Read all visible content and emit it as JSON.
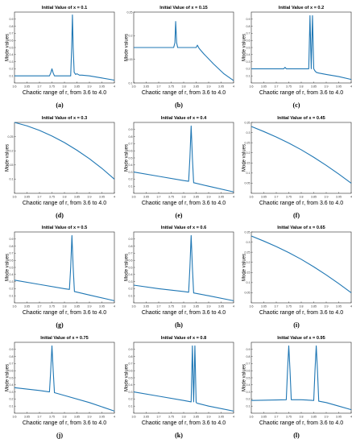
{
  "figure": {
    "line_color": "#1f77b4",
    "ylabel": "Mode values",
    "xlabel": "Chaotic range of r, from 3.6 to 4.0"
  },
  "chart_data": [
    {
      "type": "line",
      "caption": "(a)",
      "title": "Initial Value of x = 0.1",
      "xlim": [
        3.6,
        4.0
      ],
      "ylim": [
        0,
        1
      ],
      "xticks": [
        "3.6",
        "3.65",
        "3.7",
        "3.75",
        "3.8",
        "3.85",
        "3.9",
        "3.95",
        "4"
      ],
      "yticks": [
        "0.1",
        "0.2",
        "0.3",
        "0.4",
        "0.5",
        "0.6",
        "0.7",
        "0.8",
        "0.9"
      ],
      "series": [
        {
          "x": [
            3.6,
            3.74,
            3.745,
            3.75,
            3.755,
            3.76,
            3.825,
            3.829,
            3.832,
            3.835,
            3.839,
            3.845,
            3.85,
            3.855,
            3.86,
            3.87,
            3.9,
            3.95,
            4.0
          ],
          "y": [
            0.1,
            0.1,
            0.14,
            0.2,
            0.14,
            0.1,
            0.1,
            0.5,
            0.96,
            0.5,
            0.15,
            0.12,
            0.13,
            0.12,
            0.11,
            0.11,
            0.1,
            0.07,
            0.04
          ]
        }
      ]
    },
    {
      "type": "line",
      "caption": "(b)",
      "title": "Initial Value of x = 0.15",
      "xlim": [
        3.6,
        4.0
      ],
      "ylim": [
        0.1,
        0.25
      ],
      "xticks": [
        "3.6",
        "3.65",
        "3.7",
        "3.75",
        "3.8",
        "3.85",
        "3.9",
        "3.95",
        "4"
      ],
      "yticks": [
        "0.1",
        "0.15",
        "0.2",
        "0.25"
      ],
      "series": [
        {
          "x": [
            3.6,
            3.76,
            3.765,
            3.768,
            3.772,
            3.776,
            3.85,
            3.855,
            3.862,
            3.88,
            3.92,
            3.96,
            4.0
          ],
          "y": [
            0.175,
            0.175,
            0.185,
            0.23,
            0.185,
            0.175,
            0.175,
            0.18,
            0.173,
            0.162,
            0.14,
            0.12,
            0.105
          ]
        }
      ]
    },
    {
      "type": "line",
      "caption": "(c)",
      "title": "Initial Value of x = 0.2",
      "xlim": [
        3.6,
        4.0
      ],
      "ylim": [
        0,
        1
      ],
      "xticks": [
        "3.6",
        "3.65",
        "3.7",
        "3.75",
        "3.8",
        "3.85",
        "3.9",
        "3.95",
        "4"
      ],
      "yticks": [
        "0.1",
        "0.2",
        "0.3",
        "0.4",
        "0.5",
        "0.6",
        "0.7",
        "0.8",
        "0.9"
      ],
      "series": [
        {
          "x": [
            3.6,
            3.73,
            3.735,
            3.74,
            3.83,
            3.835,
            3.84,
            3.845,
            3.85,
            3.855,
            3.86,
            3.87,
            3.9,
            3.95,
            4.0
          ],
          "y": [
            0.2,
            0.2,
            0.22,
            0.2,
            0.2,
            0.95,
            0.2,
            0.95,
            0.2,
            0.17,
            0.15,
            0.14,
            0.12,
            0.09,
            0.05
          ]
        }
      ]
    },
    {
      "type": "line",
      "caption": "(d)",
      "title": "Initial Value of x = 0.3",
      "xlim": [
        3.6,
        4.0
      ],
      "ylim": [
        0.05,
        0.3
      ],
      "xticks": [
        "3.6",
        "3.65",
        "3.7",
        "3.75",
        "3.8",
        "3.85",
        "3.9",
        "3.95",
        "4"
      ],
      "yticks": [
        "0.1",
        "0.15",
        "0.2",
        "0.25"
      ],
      "series": [
        {
          "x": [
            3.6,
            3.65,
            3.7,
            3.75,
            3.8,
            3.85,
            3.9,
            3.95,
            4.0
          ],
          "y": [
            0.3,
            0.288,
            0.272,
            0.252,
            0.229,
            0.202,
            0.172,
            0.138,
            0.1
          ]
        }
      ]
    },
    {
      "type": "line",
      "caption": "(e)",
      "title": "Initial Value of x = 0.4",
      "xlim": [
        3.6,
        4.0
      ],
      "ylim": [
        0,
        1
      ],
      "xticks": [
        "3.6",
        "3.65",
        "3.7",
        "3.75",
        "3.8",
        "3.85",
        "3.9",
        "3.95",
        "4"
      ],
      "yticks": [
        "0.1",
        "0.2",
        "0.3",
        "0.4",
        "0.5",
        "0.6",
        "0.7",
        "0.8",
        "0.9"
      ],
      "series": [
        {
          "x": [
            3.6,
            3.7,
            3.8,
            3.82,
            3.825,
            3.83,
            3.835,
            3.84,
            3.9,
            4.0
          ],
          "y": [
            0.3,
            0.24,
            0.18,
            0.17,
            0.5,
            0.95,
            0.5,
            0.15,
            0.1,
            0.02
          ]
        }
      ]
    },
    {
      "type": "line",
      "caption": "(f)",
      "title": "Initial Value of x = 0.45",
      "xlim": [
        3.6,
        4.0
      ],
      "ylim": [
        0,
        0.35
      ],
      "xticks": [
        "3.6",
        "3.65",
        "3.7",
        "3.75",
        "3.8",
        "3.85",
        "3.9",
        "3.95",
        "4"
      ],
      "yticks": [
        "0.05",
        "0.1",
        "0.15",
        "0.2",
        "0.25",
        "0.3",
        "0.35"
      ],
      "series": [
        {
          "x": [
            3.6,
            3.65,
            3.7,
            3.75,
            3.8,
            3.85,
            3.9,
            3.95,
            4.0
          ],
          "y": [
            0.33,
            0.305,
            0.278,
            0.248,
            0.215,
            0.178,
            0.138,
            0.095,
            0.05
          ]
        }
      ]
    },
    {
      "type": "line",
      "caption": "(g)",
      "title": "Initial Value of x = 0.5",
      "xlim": [
        3.6,
        4.0
      ],
      "ylim": [
        0,
        1
      ],
      "xticks": [
        "3.6",
        "3.65",
        "3.7",
        "3.75",
        "3.8",
        "3.85",
        "3.9",
        "3.95",
        "4"
      ],
      "yticks": [
        "0.1",
        "0.2",
        "0.3",
        "0.4",
        "0.5",
        "0.6",
        "0.7",
        "0.8",
        "0.9"
      ],
      "series": [
        {
          "x": [
            3.6,
            3.7,
            3.8,
            3.82,
            3.825,
            3.83,
            3.835,
            3.84,
            3.9,
            4.0
          ],
          "y": [
            0.32,
            0.26,
            0.2,
            0.19,
            0.5,
            0.95,
            0.5,
            0.16,
            0.11,
            0.03
          ]
        }
      ]
    },
    {
      "type": "line",
      "caption": "(h)",
      "title": "Initial Value of x = 0.6",
      "xlim": [
        3.6,
        4.0
      ],
      "ylim": [
        0,
        1
      ],
      "xticks": [
        "3.6",
        "3.65",
        "3.7",
        "3.75",
        "3.8",
        "3.85",
        "3.9",
        "3.95",
        "4"
      ],
      "yticks": [
        "0.1",
        "0.2",
        "0.3",
        "0.4",
        "0.5",
        "0.6",
        "0.7",
        "0.8",
        "0.9"
      ],
      "series": [
        {
          "x": [
            3.6,
            3.7,
            3.8,
            3.82,
            3.825,
            3.83,
            3.835,
            3.84,
            3.9,
            4.0
          ],
          "y": [
            0.25,
            0.2,
            0.16,
            0.15,
            0.5,
            0.95,
            0.5,
            0.14,
            0.1,
            0.03
          ]
        }
      ]
    },
    {
      "type": "line",
      "caption": "(i)",
      "title": "Initial Value of x = 0.65",
      "xlim": [
        3.6,
        4.0
      ],
      "ylim": [
        0,
        0.35
      ],
      "xticks": [
        "3.6",
        "3.65",
        "3.7",
        "3.75",
        "3.8",
        "3.85",
        "3.9",
        "3.95",
        "4"
      ],
      "yticks": [
        "0.05",
        "0.1",
        "0.15",
        "0.2",
        "0.25",
        "0.3",
        "0.35"
      ],
      "series": [
        {
          "x": [
            3.6,
            3.65,
            3.7,
            3.75,
            3.8,
            3.85,
            3.9,
            3.95,
            4.0
          ],
          "y": [
            0.33,
            0.305,
            0.278,
            0.248,
            0.215,
            0.178,
            0.138,
            0.095,
            0.05
          ]
        }
      ]
    },
    {
      "type": "line",
      "caption": "(j)",
      "title": "Initial Value of x = 0.75",
      "xlim": [
        3.6,
        4.0
      ],
      "ylim": [
        0,
        1
      ],
      "xticks": [
        "3.6",
        "3.65",
        "3.7",
        "3.75",
        "3.8",
        "3.85",
        "3.9",
        "3.95",
        "4"
      ],
      "yticks": [
        "0.1",
        "0.2",
        "0.3",
        "0.4",
        "0.5",
        "0.6",
        "0.7",
        "0.8",
        "0.9"
      ],
      "series": [
        {
          "x": [
            3.6,
            3.7,
            3.74,
            3.745,
            3.75,
            3.755,
            3.76,
            3.8,
            3.9,
            4.0
          ],
          "y": [
            0.36,
            0.32,
            0.3,
            0.6,
            0.95,
            0.6,
            0.29,
            0.25,
            0.15,
            0.03
          ]
        }
      ]
    },
    {
      "type": "line",
      "caption": "(k)",
      "title": "Initial Value of x = 0.8",
      "xlim": [
        3.6,
        4.0
      ],
      "ylim": [
        0,
        1
      ],
      "xticks": [
        "3.6",
        "3.65",
        "3.7",
        "3.75",
        "3.8",
        "3.85",
        "3.9",
        "3.95",
        "4"
      ],
      "yticks": [
        "0.1",
        "0.2",
        "0.3",
        "0.4",
        "0.5",
        "0.6",
        "0.7",
        "0.8",
        "0.9"
      ],
      "series": [
        {
          "x": [
            3.6,
            3.7,
            3.8,
            3.83,
            3.835,
            3.84,
            3.845,
            3.85,
            3.855,
            3.9,
            4.0
          ],
          "y": [
            0.3,
            0.24,
            0.18,
            0.16,
            0.95,
            0.16,
            0.95,
            0.15,
            0.14,
            0.1,
            0.03
          ]
        }
      ]
    },
    {
      "type": "line",
      "caption": "(l)",
      "title": "Initial Value of x = 0.95",
      "xlim": [
        3.6,
        4.0
      ],
      "ylim": [
        0,
        1
      ],
      "xticks": [
        "3.6",
        "3.65",
        "3.7",
        "3.75",
        "3.8",
        "3.85",
        "3.9",
        "3.95",
        "4"
      ],
      "yticks": [
        "0.1",
        "0.2",
        "0.3",
        "0.4",
        "0.5",
        "0.6",
        "0.7",
        "0.8",
        "0.9"
      ],
      "series": [
        {
          "x": [
            3.6,
            3.74,
            3.745,
            3.75,
            3.755,
            3.76,
            3.8,
            3.85,
            3.855,
            3.86,
            3.865,
            3.87,
            3.9,
            3.95,
            4.0
          ],
          "y": [
            0.18,
            0.19,
            0.6,
            0.95,
            0.6,
            0.19,
            0.19,
            0.18,
            0.6,
            0.95,
            0.6,
            0.17,
            0.15,
            0.1,
            0.05
          ]
        }
      ]
    }
  ]
}
